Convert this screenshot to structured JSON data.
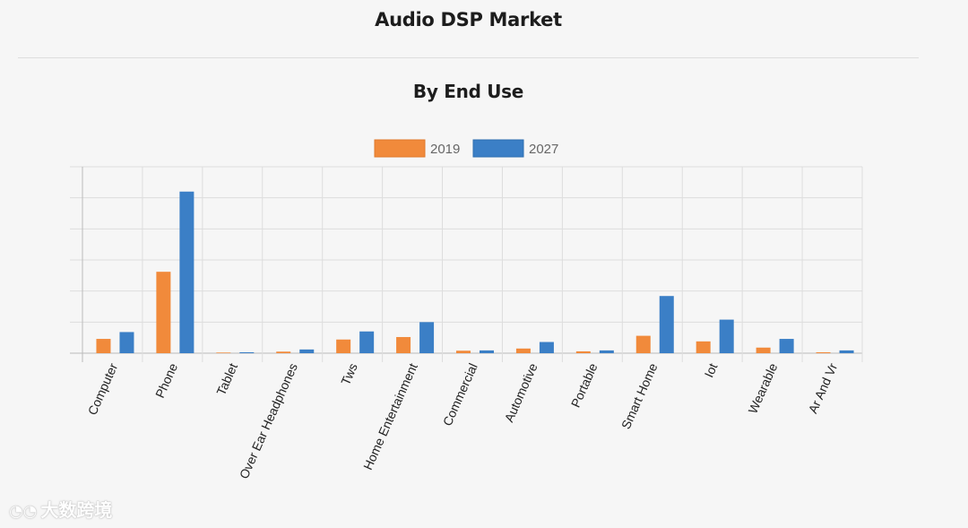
{
  "header": {
    "title": "Audio DSP Market"
  },
  "section": {
    "title": "By End Use"
  },
  "watermark": {
    "text": "大数跨境"
  },
  "colors": {
    "series2019": "#f18a3b",
    "series2027": "#3b7fc6",
    "grid": "#dddddd",
    "axis": "#bbbbbb"
  },
  "chart_data": {
    "type": "bar",
    "title": "By End Use",
    "xlabel": "",
    "ylabel": "",
    "ylim": [
      0,
      30
    ],
    "grid": true,
    "legend": "top-center",
    "categories": [
      "Computer",
      "Phone",
      "Tablet",
      "Over Ear Headphones",
      "Tws",
      "Home Entertainment",
      "Commercial",
      "Automotive",
      "Portable",
      "Smart Home",
      "Iot",
      "Wearable",
      "Ar And Vr"
    ],
    "series": [
      {
        "name": "2019",
        "values": [
          2.3,
          13.1,
          0.1,
          0.25,
          2.2,
          2.6,
          0.4,
          0.75,
          0.3,
          2.8,
          1.9,
          0.9,
          0.15
        ]
      },
      {
        "name": "2027",
        "values": [
          3.4,
          26.0,
          0.15,
          0.6,
          3.5,
          5.0,
          0.45,
          1.8,
          0.45,
          9.2,
          5.4,
          2.3,
          0.45
        ]
      }
    ]
  }
}
